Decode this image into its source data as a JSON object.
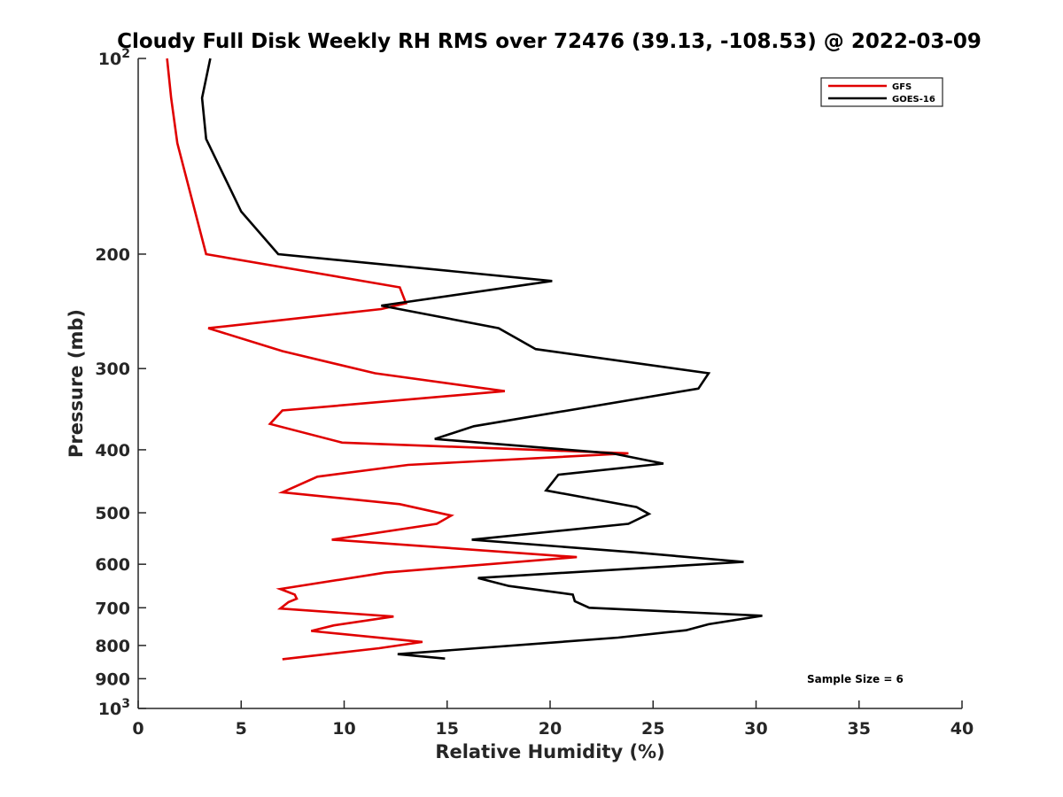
{
  "chart_data": {
    "type": "line",
    "title": "Cloudy Full Disk Weekly RH RMS over 72476 (39.13, -108.53) @ 2022-03-09",
    "xlabel": "Relative Humidity (%)",
    "ylabel": "Pressure (mb)",
    "xlim": [
      0,
      40
    ],
    "ylim": [
      100,
      1000
    ],
    "yscale": "log",
    "y_reversed": true,
    "grid": false,
    "legend_position": "top-right",
    "x_ticks": [
      "0",
      "5",
      "10",
      "15",
      "20",
      "25",
      "30",
      "35",
      "40"
    ],
    "x_tick_values": [
      0,
      5,
      10,
      15,
      20,
      25,
      30,
      35,
      40
    ],
    "y_ticks": [
      {
        "value": 100,
        "base": "10",
        "exp": "2"
      },
      {
        "value": 200,
        "label": "200"
      },
      {
        "value": 300,
        "label": "300"
      },
      {
        "value": 400,
        "label": "400"
      },
      {
        "value": 500,
        "label": "500"
      },
      {
        "value": 600,
        "label": "600"
      },
      {
        "value": 700,
        "label": "700"
      },
      {
        "value": 800,
        "label": "800"
      },
      {
        "value": 900,
        "label": "900"
      },
      {
        "value": 1000,
        "base": "10",
        "exp": "3"
      }
    ],
    "annotation": "Sample Size = 6",
    "series": [
      {
        "name": "GFS",
        "color": "#e00000",
        "points": [
          [
            1.4,
            100
          ],
          [
            1.6,
            115
          ],
          [
            1.9,
            135
          ],
          [
            3.3,
            200
          ],
          [
            12.7,
            225
          ],
          [
            13.0,
            238
          ],
          [
            11.8,
            243
          ],
          [
            3.4,
            260
          ],
          [
            7.0,
            282
          ],
          [
            11.5,
            305
          ],
          [
            17.8,
            325
          ],
          [
            7.0,
            348
          ],
          [
            6.4,
            365
          ],
          [
            9.9,
            390
          ],
          [
            23.8,
            405
          ],
          [
            13.1,
            422
          ],
          [
            8.7,
            440
          ],
          [
            7.0,
            465
          ],
          [
            12.7,
            485
          ],
          [
            15.2,
            505
          ],
          [
            14.5,
            520
          ],
          [
            9.4,
            550
          ],
          [
            21.3,
            585
          ],
          [
            12.0,
            618
          ],
          [
            6.9,
            655
          ],
          [
            7.6,
            668
          ],
          [
            7.7,
            678
          ],
          [
            7.3,
            686
          ],
          [
            6.9,
            702
          ],
          [
            12.4,
            722
          ],
          [
            9.5,
            745
          ],
          [
            8.4,
            760
          ],
          [
            13.8,
            790
          ],
          [
            11.7,
            808
          ],
          [
            7.0,
            840
          ]
        ]
      },
      {
        "name": "GOES-16",
        "color": "#000000",
        "points": [
          [
            3.5,
            100
          ],
          [
            3.1,
            115
          ],
          [
            3.3,
            133
          ],
          [
            5.0,
            172
          ],
          [
            6.8,
            200
          ],
          [
            20.1,
            220
          ],
          [
            11.8,
            240
          ],
          [
            17.5,
            260
          ],
          [
            19.3,
            280
          ],
          [
            27.7,
            305
          ],
          [
            27.2,
            322
          ],
          [
            16.3,
            368
          ],
          [
            14.4,
            385
          ],
          [
            23.0,
            405
          ],
          [
            25.5,
            420
          ],
          [
            20.4,
            437
          ],
          [
            19.8,
            462
          ],
          [
            24.2,
            490
          ],
          [
            24.8,
            502
          ],
          [
            23.8,
            520
          ],
          [
            16.2,
            550
          ],
          [
            24.0,
            575
          ],
          [
            29.4,
            595
          ],
          [
            16.5,
            630
          ],
          [
            18.0,
            648
          ],
          [
            21.1,
            668
          ],
          [
            21.2,
            684
          ],
          [
            21.9,
            700
          ],
          [
            30.3,
            720
          ],
          [
            27.7,
            742
          ],
          [
            26.6,
            758
          ],
          [
            23.3,
            778
          ],
          [
            12.6,
            825
          ],
          [
            14.9,
            838
          ]
        ]
      }
    ]
  }
}
